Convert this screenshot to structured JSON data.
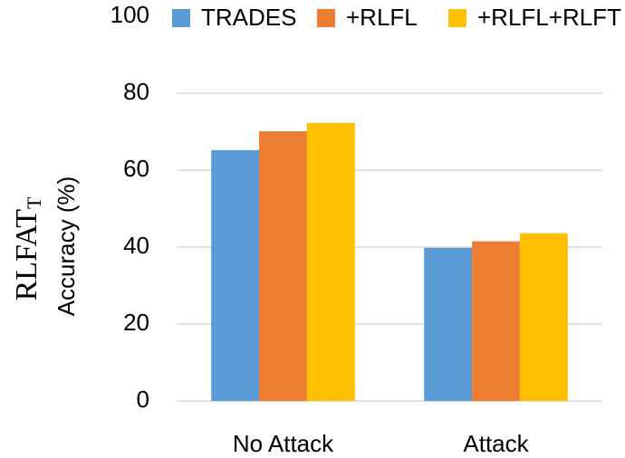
{
  "chart_data": {
    "type": "bar",
    "ylabel_main": "RLFAT",
    "ylabel_sub": "T",
    "ylabel": "Accuracy (%)",
    "categories": [
      "No Attack",
      "Attack"
    ],
    "series": [
      {
        "name": "TRADES",
        "color": "#5b9bd5",
        "values": [
          65.2,
          39.8
        ]
      },
      {
        "name": "+RLFL",
        "color": "#ed7d31",
        "values": [
          70.1,
          41.5
        ]
      },
      {
        "name": "+RLFL+RLFT",
        "color": "#ffc000",
        "values": [
          72.3,
          43.6
        ]
      }
    ],
    "ylim": [
      0,
      100
    ],
    "yticks": [
      0,
      20,
      40,
      60,
      80,
      100
    ],
    "grid": true,
    "legend": "top"
  }
}
